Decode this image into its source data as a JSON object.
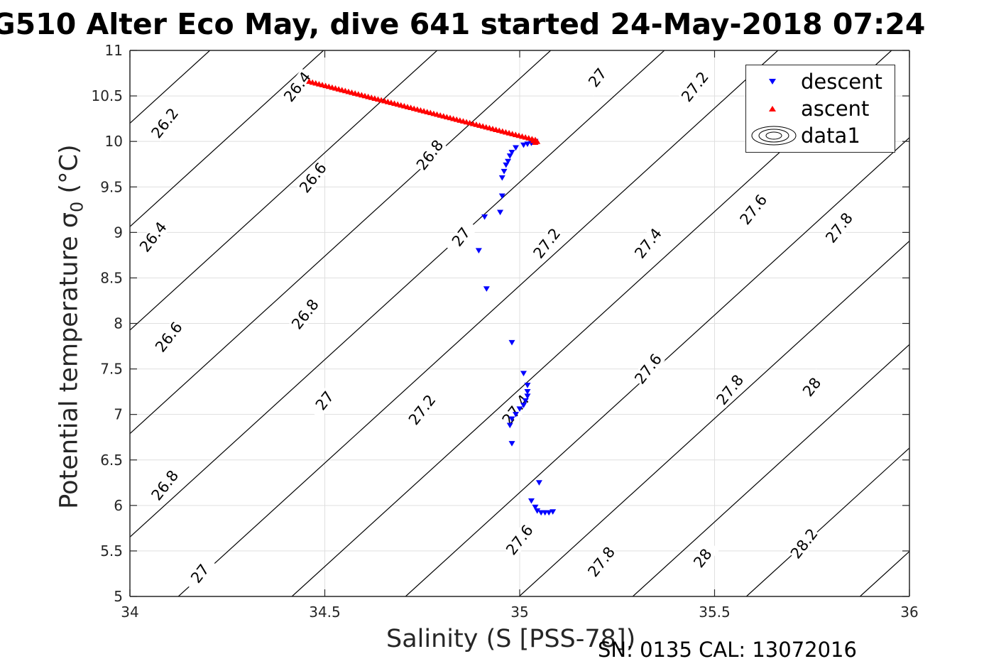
{
  "figure": {
    "title": "G510 Alter Eco May, dive 641 started 24-May-2018 07:24",
    "footer": "SN: 0135  CAL: 13072016"
  },
  "legend": {
    "entries": [
      "descent",
      "ascent",
      "data1"
    ],
    "placement": "top-right"
  },
  "colors": {
    "descent": "#0000ff",
    "ascent": "#ff0000",
    "contour": "#000000",
    "grid": "#dfdfdf"
  },
  "chart_data": {
    "type": "scatter",
    "xlabel": "Salinity (S [PSS-78])",
    "ylabel": "Potential temperature σ",
    "ylabel_sub": "0",
    "ylabel_unit": " (°C)",
    "xlim": [
      34,
      36
    ],
    "ylim": [
      5,
      11
    ],
    "xticks": [
      34,
      34.5,
      35,
      35.5,
      36
    ],
    "yticks": [
      5,
      5.5,
      6,
      6.5,
      7,
      7.5,
      8,
      8.5,
      9,
      9.5,
      10,
      10.5,
      11
    ],
    "grid": true,
    "series": [
      {
        "name": "descent",
        "marker": "triangle-down",
        "color": "#0000ff",
        "points": [
          [
            35.04,
            10.0
          ],
          [
            35.03,
            9.98
          ],
          [
            35.02,
            9.97
          ],
          [
            35.01,
            9.96
          ],
          [
            34.99,
            9.93
          ],
          [
            34.98,
            9.88
          ],
          [
            34.975,
            9.84
          ],
          [
            34.97,
            9.78
          ],
          [
            34.965,
            9.74
          ],
          [
            34.96,
            9.67
          ],
          [
            34.955,
            9.6
          ],
          [
            34.955,
            9.4
          ],
          [
            34.95,
            9.22
          ],
          [
            34.91,
            9.17
          ],
          [
            34.895,
            8.8
          ],
          [
            34.915,
            8.38
          ],
          [
            34.98,
            7.79
          ],
          [
            35.01,
            7.45
          ],
          [
            35.02,
            7.32
          ],
          [
            35.02,
            7.25
          ],
          [
            35.02,
            7.2
          ],
          [
            35.015,
            7.15
          ],
          [
            35.01,
            7.1
          ],
          [
            35.0,
            7.06
          ],
          [
            34.99,
            7.0
          ],
          [
            34.98,
            6.95
          ],
          [
            34.975,
            6.88
          ],
          [
            34.98,
            6.68
          ],
          [
            35.05,
            6.25
          ],
          [
            35.03,
            6.05
          ],
          [
            35.04,
            5.98
          ],
          [
            35.045,
            5.94
          ],
          [
            35.055,
            5.92
          ],
          [
            35.065,
            5.92
          ],
          [
            35.075,
            5.92
          ],
          [
            35.085,
            5.93
          ]
        ]
      },
      {
        "name": "ascent",
        "marker": "triangle-up",
        "color": "#ff0000",
        "line": {
          "from": [
            34.46,
            10.66
          ],
          "to": [
            35.04,
            10.02
          ],
          "count": 70
        },
        "points": [
          [
            35.045,
            10.0
          ],
          [
            35.04,
            9.99
          ],
          [
            35.035,
            10.01
          ]
        ]
      }
    ],
    "contours": {
      "name": "data1",
      "description_note": "",
      "levels": [
        {
          "value": 26.2,
          "labels": [
            [
              34.09,
              10.2
            ]
          ]
        },
        {
          "value": 26.4,
          "labels": [
            [
              34.43,
              10.6
            ],
            [
              34.06,
              8.95
            ]
          ]
        },
        {
          "value": 26.6,
          "labels": [
            [
              34.47,
              9.6
            ],
            [
              34.1,
              7.85
            ]
          ]
        },
        {
          "value": 26.8,
          "labels": [
            [
              34.77,
              9.85
            ],
            [
              34.45,
              8.1
            ],
            [
              34.09,
              6.22
            ]
          ]
        },
        {
          "value": 27,
          "labels": [
            [
              35.2,
              10.7
            ],
            [
              34.85,
              8.95
            ],
            [
              34.5,
              7.15
            ],
            [
              34.18,
              5.25
            ]
          ]
        },
        {
          "value": 27.2,
          "labels": [
            [
              35.45,
              10.6
            ],
            [
              35.07,
              8.88
            ],
            [
              34.75,
              7.05
            ]
          ]
        },
        {
          "value": 27.4,
          "labels": [
            [
              35.33,
              8.88
            ],
            [
              34.99,
              7.05
            ]
          ]
        },
        {
          "value": 27.6,
          "labels": [
            [
              35.6,
              9.25
            ],
            [
              35.33,
              7.5
            ],
            [
              35.0,
              5.62
            ]
          ]
        },
        {
          "value": 27.8,
          "labels": [
            [
              35.82,
              9.05
            ],
            [
              35.54,
              7.27
            ],
            [
              35.21,
              5.38
            ]
          ]
        },
        {
          "value": 28,
          "labels": [
            [
              35.75,
              7.3
            ],
            [
              35.47,
              5.42
            ]
          ]
        },
        {
          "value": 28.2,
          "labels": [
            [
              35.73,
              5.58
            ]
          ]
        }
      ]
    }
  }
}
